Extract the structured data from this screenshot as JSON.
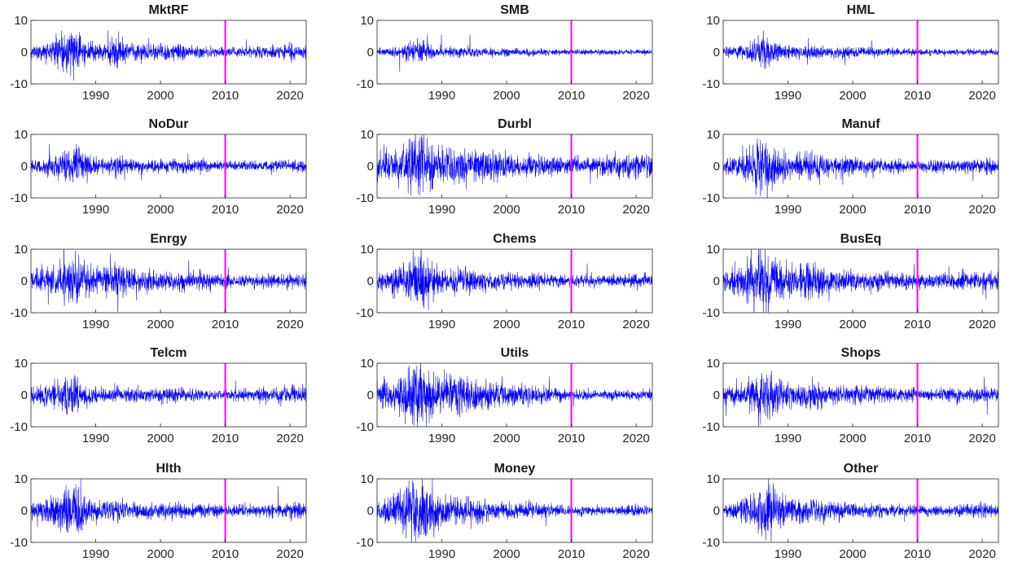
{
  "chart_data": {
    "type": "line",
    "layout": {
      "rows": 5,
      "cols": 3
    },
    "x_range": [
      1980.0,
      2022.5
    ],
    "ylim": [
      -10,
      10
    ],
    "yticks": [
      10,
      0,
      -10
    ],
    "xticks": [
      1990,
      2000,
      2010,
      2020
    ],
    "vertical_line": {
      "x": 2010
    },
    "colors": {
      "series": "#0000ff",
      "marker": "#ff00ff"
    },
    "grid": false,
    "panels": [
      {
        "title": "MktRF",
        "volatility": [
          [
            1980,
            1.0
          ],
          [
            1983,
            1.6
          ],
          [
            1985,
            3.2
          ],
          [
            1987,
            3.6
          ],
          [
            1989,
            1.6
          ],
          [
            1991,
            1.2
          ],
          [
            1993,
            2.4
          ],
          [
            1995,
            1.4
          ],
          [
            2000,
            1.2
          ],
          [
            2003,
            1.4
          ],
          [
            2005,
            0.9
          ],
          [
            2010,
            0.8
          ],
          [
            2015,
            0.8
          ],
          [
            2020,
            1.2
          ],
          [
            2022.5,
            0.9
          ]
        ]
      },
      {
        "title": "SMB",
        "volatility": [
          [
            1980,
            0.6
          ],
          [
            1983,
            0.8
          ],
          [
            1985,
            1.6
          ],
          [
            1987,
            2.2
          ],
          [
            1989,
            1.0
          ],
          [
            1991,
            0.8
          ],
          [
            1993,
            1.0
          ],
          [
            1996,
            0.6
          ],
          [
            2003,
            0.6
          ],
          [
            2010,
            0.4
          ],
          [
            2015,
            0.4
          ],
          [
            2022.5,
            0.4
          ]
        ]
      },
      {
        "title": "HML",
        "volatility": [
          [
            1980,
            0.8
          ],
          [
            1983,
            1.2
          ],
          [
            1985,
            2.0
          ],
          [
            1987,
            2.6
          ],
          [
            1989,
            1.2
          ],
          [
            1992,
            0.9
          ],
          [
            1995,
            1.0
          ],
          [
            2000,
            0.8
          ],
          [
            2005,
            0.6
          ],
          [
            2010,
            0.5
          ],
          [
            2015,
            0.5
          ],
          [
            2022.5,
            0.5
          ]
        ]
      },
      {
        "title": "NoDur",
        "volatility": [
          [
            1980,
            1.0
          ],
          [
            1983,
            1.3
          ],
          [
            1985,
            2.6
          ],
          [
            1987,
            3.0
          ],
          [
            1989,
            1.4
          ],
          [
            1991,
            1.0
          ],
          [
            1993,
            1.6
          ],
          [
            1996,
            1.0
          ],
          [
            2003,
            1.1
          ],
          [
            2010,
            0.7
          ],
          [
            2016,
            0.8
          ],
          [
            2020,
            1.0
          ],
          [
            2022.5,
            0.8
          ]
        ]
      },
      {
        "title": "Durbl",
        "volatility": [
          [
            1980,
            2.0
          ],
          [
            1983,
            2.6
          ],
          [
            1985,
            4.6
          ],
          [
            1987,
            5.2
          ],
          [
            1989,
            3.6
          ],
          [
            1991,
            2.6
          ],
          [
            1993,
            3.4
          ],
          [
            1996,
            2.4
          ],
          [
            2000,
            2.0
          ],
          [
            2005,
            1.6
          ],
          [
            2010,
            1.4
          ],
          [
            2015,
            1.6
          ],
          [
            2020,
            1.8
          ],
          [
            2022.5,
            1.6
          ]
        ]
      },
      {
        "title": "Manuf",
        "volatility": [
          [
            1980,
            1.2
          ],
          [
            1983,
            1.8
          ],
          [
            1985,
            3.6
          ],
          [
            1987,
            4.4
          ],
          [
            1989,
            2.4
          ],
          [
            1991,
            1.6
          ],
          [
            1993,
            2.6
          ],
          [
            1996,
            1.6
          ],
          [
            2000,
            1.4
          ],
          [
            2005,
            1.1
          ],
          [
            2010,
            0.9
          ],
          [
            2015,
            1.0
          ],
          [
            2020,
            1.2
          ],
          [
            2022.5,
            1.0
          ]
        ]
      },
      {
        "title": "Enrgy",
        "volatility": [
          [
            1980,
            1.6
          ],
          [
            1983,
            2.2
          ],
          [
            1985,
            3.2
          ],
          [
            1987,
            3.4
          ],
          [
            1989,
            2.2
          ],
          [
            1991,
            1.8
          ],
          [
            1993,
            2.8
          ],
          [
            1996,
            1.8
          ],
          [
            2000,
            1.6
          ],
          [
            2005,
            1.4
          ],
          [
            2010,
            1.0
          ],
          [
            2015,
            1.1
          ],
          [
            2020,
            1.2
          ],
          [
            2022.5,
            1.0
          ]
        ]
      },
      {
        "title": "Chems",
        "volatility": [
          [
            1980,
            1.4
          ],
          [
            1983,
            2.0
          ],
          [
            1985,
            3.4
          ],
          [
            1987,
            4.2
          ],
          [
            1989,
            2.2
          ],
          [
            1991,
            1.4
          ],
          [
            1993,
            2.2
          ],
          [
            1996,
            1.4
          ],
          [
            2000,
            1.2
          ],
          [
            2005,
            1.1
          ],
          [
            2010,
            0.9
          ],
          [
            2015,
            0.9
          ],
          [
            2020,
            1.1
          ],
          [
            2022.5,
            1.0
          ]
        ]
      },
      {
        "title": "BusEq",
        "volatility": [
          [
            1980,
            1.6
          ],
          [
            1983,
            2.4
          ],
          [
            1985,
            4.4
          ],
          [
            1987,
            5.0
          ],
          [
            1989,
            3.0
          ],
          [
            1991,
            2.0
          ],
          [
            1993,
            3.0
          ],
          [
            1996,
            2.0
          ],
          [
            2000,
            1.6
          ],
          [
            2005,
            1.4
          ],
          [
            2010,
            1.1
          ],
          [
            2015,
            1.2
          ],
          [
            2020,
            1.6
          ],
          [
            2022.5,
            1.3
          ]
        ]
      },
      {
        "title": "Telcm",
        "volatility": [
          [
            1980,
            1.4
          ],
          [
            1983,
            1.8
          ],
          [
            1985,
            2.8
          ],
          [
            1987,
            3.0
          ],
          [
            1989,
            1.6
          ],
          [
            1991,
            1.2
          ],
          [
            1993,
            1.4
          ],
          [
            1996,
            1.1
          ],
          [
            2000,
            1.2
          ],
          [
            2005,
            0.9
          ],
          [
            2010,
            0.8
          ],
          [
            2015,
            1.0
          ],
          [
            2020,
            1.4
          ],
          [
            2022.5,
            1.2
          ]
        ]
      },
      {
        "title": "Utils",
        "volatility": [
          [
            1980,
            1.8
          ],
          [
            1983,
            2.6
          ],
          [
            1985,
            4.4
          ],
          [
            1987,
            5.0
          ],
          [
            1989,
            3.4
          ],
          [
            1991,
            2.6
          ],
          [
            1993,
            3.4
          ],
          [
            1996,
            2.2
          ],
          [
            2000,
            1.8
          ],
          [
            2005,
            1.2
          ],
          [
            2010,
            0.8
          ],
          [
            2015,
            0.7
          ],
          [
            2020,
            0.8
          ],
          [
            2022.5,
            0.7
          ]
        ]
      },
      {
        "title": "Shops",
        "volatility": [
          [
            1980,
            1.2
          ],
          [
            1983,
            1.8
          ],
          [
            1985,
            3.4
          ],
          [
            1987,
            4.0
          ],
          [
            1989,
            2.2
          ],
          [
            1991,
            1.6
          ],
          [
            1993,
            2.4
          ],
          [
            1996,
            1.6
          ],
          [
            2000,
            1.4
          ],
          [
            2005,
            1.2
          ],
          [
            2010,
            0.9
          ],
          [
            2015,
            1.0
          ],
          [
            2020,
            1.2
          ],
          [
            2022.5,
            1.0
          ]
        ]
      },
      {
        "title": "Hlth",
        "volatility": [
          [
            1980,
            1.2
          ],
          [
            1983,
            1.8
          ],
          [
            1985,
            3.8
          ],
          [
            1987,
            4.8
          ],
          [
            1989,
            2.2
          ],
          [
            1991,
            1.4
          ],
          [
            1993,
            1.8
          ],
          [
            1996,
            1.2
          ],
          [
            2000,
            1.4
          ],
          [
            2005,
            1.1
          ],
          [
            2010,
            0.9
          ],
          [
            2015,
            1.0
          ],
          [
            2020,
            1.3
          ],
          [
            2022.5,
            1.0
          ]
        ]
      },
      {
        "title": "Money",
        "volatility": [
          [
            1980,
            1.6
          ],
          [
            1983,
            2.6
          ],
          [
            1985,
            4.6
          ],
          [
            1987,
            5.2
          ],
          [
            1989,
            3.2
          ],
          [
            1991,
            2.0
          ],
          [
            1993,
            2.8
          ],
          [
            1996,
            1.8
          ],
          [
            2000,
            1.4
          ],
          [
            2005,
            1.1
          ],
          [
            2010,
            0.8
          ],
          [
            2015,
            0.7
          ],
          [
            2020,
            0.8
          ],
          [
            2022.5,
            0.7
          ]
        ]
      },
      {
        "title": "Other",
        "volatility": [
          [
            1980,
            1.0
          ],
          [
            1983,
            1.6
          ],
          [
            1985,
            3.6
          ],
          [
            1987,
            4.6
          ],
          [
            1989,
            2.4
          ],
          [
            1991,
            1.6
          ],
          [
            1993,
            2.2
          ],
          [
            1996,
            1.4
          ],
          [
            2000,
            1.2
          ],
          [
            2005,
            1.0
          ],
          [
            2010,
            0.8
          ],
          [
            2015,
            0.9
          ],
          [
            2020,
            1.1
          ],
          [
            2022.5,
            0.9
          ]
        ]
      }
    ]
  }
}
